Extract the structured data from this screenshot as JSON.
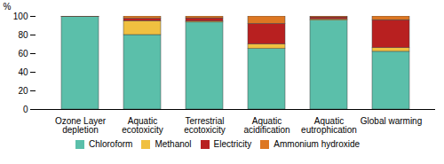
{
  "chart_data": {
    "type": "bar",
    "stacked": true,
    "categories": [
      "Ozone Layer\ndepletion",
      "Aquatic\necotoxicity",
      "Terrestrial\necotoxicity",
      "Aquatic\nacidification",
      "Aquatic\neutrophication",
      "Global warming"
    ],
    "series": [
      {
        "name": "Chloroform",
        "color": "#5BBFAA",
        "values": [
          99.5,
          80.0,
          93.5,
          65.0,
          95.5,
          62.0
        ]
      },
      {
        "name": "Methanol",
        "color": "#F0C040",
        "values": [
          0.2,
          15.0,
          1.0,
          5.0,
          1.5,
          4.0
        ]
      },
      {
        "name": "Electricity",
        "color": "#B82020",
        "values": [
          0.1,
          2.5,
          3.5,
          22.0,
          2.0,
          30.0
        ]
      },
      {
        "name": "Ammonium hydroxide",
        "color": "#DD7722",
        "values": [
          0.2,
          2.5,
          2.0,
          8.0,
          1.0,
          4.0
        ]
      }
    ],
    "ylabel": "%",
    "ylim": [
      0,
      100
    ],
    "yticks": [
      0,
      20,
      40,
      60,
      80,
      100
    ],
    "grid": false,
    "legend": "bottom"
  }
}
